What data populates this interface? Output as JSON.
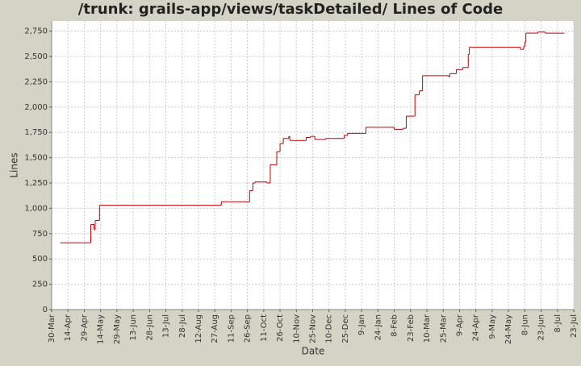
{
  "chart_data": {
    "type": "step",
    "title": "/trunk: grails-app/views/taskDetailed/ Lines of Code",
    "x_label": "Date",
    "y_label": "Lines",
    "x": [
      8,
      36,
      39,
      40,
      44,
      156,
      182,
      185,
      187,
      198,
      201,
      207,
      210,
      213,
      218,
      219,
      234,
      238,
      242,
      252,
      269,
      272,
      289,
      315,
      323,
      326,
      334,
      338,
      341,
      365,
      366,
      372,
      378,
      383,
      384,
      431,
      434,
      435,
      436,
      447,
      454,
      471
    ],
    "series": [
      {
        "name": "Lines",
        "color": "#c00000",
        "values": [
          660,
          840,
          790,
          880,
          1030,
          1065,
          1175,
          1250,
          1260,
          1250,
          1430,
          1560,
          1640,
          1690,
          1710,
          1670,
          1700,
          1710,
          1680,
          1690,
          1720,
          1740,
          1800,
          1780,
          1790,
          1910,
          2120,
          2160,
          2310,
          2300,
          2330,
          2370,
          2390,
          2520,
          2590,
          2570,
          2600,
          2640,
          2730,
          2740,
          2730,
          2730
        ]
      }
    ],
    "xlim": [
      0,
      480
    ],
    "xticks": [
      {
        "value": 0,
        "label": "30-Mar"
      },
      {
        "value": 15,
        "label": "14-Apr"
      },
      {
        "value": 30,
        "label": "29-Apr"
      },
      {
        "value": 45,
        "label": "14-May"
      },
      {
        "value": 60,
        "label": "29-May"
      },
      {
        "value": 75,
        "label": "13-Jun"
      },
      {
        "value": 90,
        "label": "28-Jun"
      },
      {
        "value": 105,
        "label": "13-Jul"
      },
      {
        "value": 120,
        "label": "28-Jul"
      },
      {
        "value": 135,
        "label": "12-Aug"
      },
      {
        "value": 150,
        "label": "27-Aug"
      },
      {
        "value": 165,
        "label": "11-Sep"
      },
      {
        "value": 180,
        "label": "26-Sep"
      },
      {
        "value": 195,
        "label": "11-Oct"
      },
      {
        "value": 210,
        "label": "26-Oct"
      },
      {
        "value": 225,
        "label": "10-Nov"
      },
      {
        "value": 240,
        "label": "25-Nov"
      },
      {
        "value": 255,
        "label": "10-Dec"
      },
      {
        "value": 270,
        "label": "25-Dec"
      },
      {
        "value": 285,
        "label": "9-Jan"
      },
      {
        "value": 300,
        "label": "24-Jan"
      },
      {
        "value": 315,
        "label": "8-Feb"
      },
      {
        "value": 330,
        "label": "23-Feb"
      },
      {
        "value": 345,
        "label": "10-Mar"
      },
      {
        "value": 360,
        "label": "25-Mar"
      },
      {
        "value": 375,
        "label": "9-Apr"
      },
      {
        "value": 390,
        "label": "24-Apr"
      },
      {
        "value": 405,
        "label": "9-May"
      },
      {
        "value": 420,
        "label": "24-May"
      },
      {
        "value": 435,
        "label": "8-Jun"
      },
      {
        "value": 450,
        "label": "23-Jun"
      },
      {
        "value": 465,
        "label": "8-Jul"
      },
      {
        "value": 480,
        "label": "23-Jul"
      }
    ],
    "ylim": [
      0,
      2850
    ],
    "yticks": [
      0,
      250,
      500,
      750,
      {
        "value": 1000,
        "label": "1,000"
      },
      {
        "value": 1250,
        "label": "1,250"
      },
      {
        "value": 1500,
        "label": "1,500"
      },
      {
        "value": 1750,
        "label": "1,750"
      },
      {
        "value": 2000,
        "label": "2,000"
      },
      {
        "value": 2250,
        "label": "2,250"
      },
      {
        "value": 2500,
        "label": "2,500"
      },
      {
        "value": 2750,
        "label": "2,750"
      }
    ],
    "grid": true
  }
}
